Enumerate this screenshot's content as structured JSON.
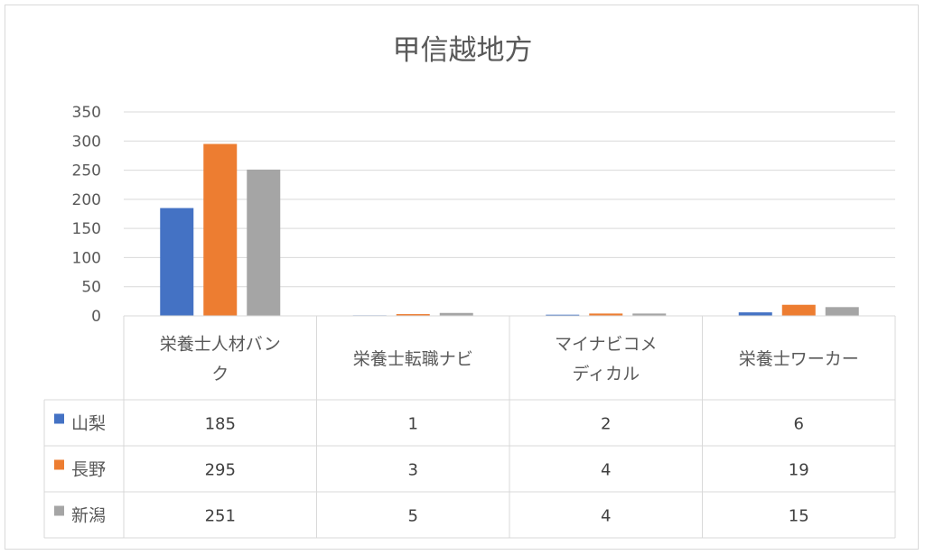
{
  "chart_data": {
    "type": "bar",
    "title": "甲信越地方",
    "categories": [
      [
        "栄養士人材バン",
        "ク"
      ],
      [
        "栄養士転職ナビ"
      ],
      [
        "マイナビコメ",
        "ディカル"
      ],
      [
        "栄養士ワーカー"
      ]
    ],
    "series": [
      {
        "name": "山梨",
        "color": "#4472c4",
        "values": [
          185,
          1,
          2,
          6
        ]
      },
      {
        "name": "長野",
        "color": "#ed7d31",
        "values": [
          295,
          3,
          4,
          19
        ]
      },
      {
        "name": "新潟",
        "color": "#a5a5a5",
        "values": [
          251,
          5,
          4,
          15
        ]
      }
    ],
    "ylim": [
      0,
      350
    ],
    "yticks": [
      0,
      50,
      100,
      150,
      200,
      250,
      300,
      350
    ],
    "grid": true,
    "legend": "data-table"
  }
}
